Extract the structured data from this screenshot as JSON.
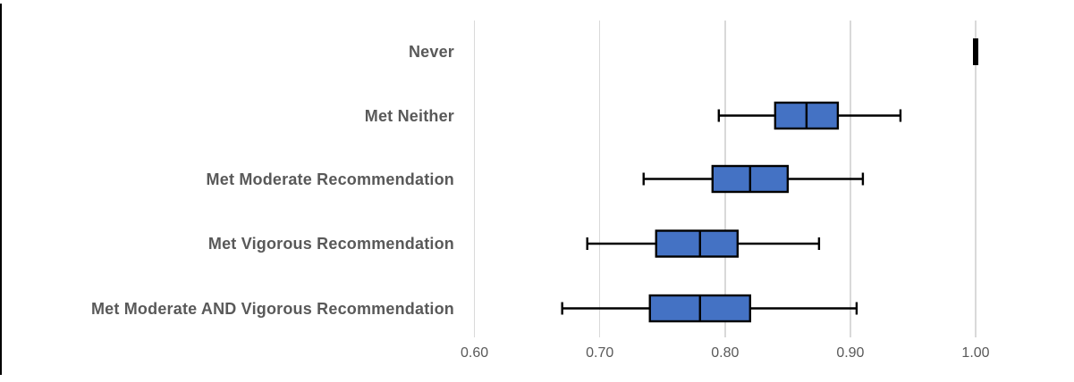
{
  "chart_data": {
    "type": "box",
    "orientation": "horizontal",
    "title": "",
    "xlabel": "",
    "ylabel": "",
    "categories": [
      "Never",
      "Met Neither",
      "Met Moderate Recommendation",
      "Met Vigorous Recommendation",
      "Met Moderate AND Vigorous Recommendation"
    ],
    "series": [
      {
        "name": "Never",
        "min": 1.0,
        "q1": 1.0,
        "median": 1.0,
        "q3": 1.0,
        "max": 1.0
      },
      {
        "name": "Met Neither",
        "min": 0.795,
        "q1": 0.84,
        "median": 0.865,
        "q3": 0.89,
        "max": 0.94
      },
      {
        "name": "Met Moderate Recommendation",
        "min": 0.735,
        "q1": 0.79,
        "median": 0.82,
        "q3": 0.85,
        "max": 0.91
      },
      {
        "name": "Met Vigorous Recommendation",
        "min": 0.69,
        "q1": 0.745,
        "median": 0.78,
        "q3": 0.81,
        "max": 0.875
      },
      {
        "name": "Met Moderate AND Vigorous Recommendation",
        "min": 0.67,
        "q1": 0.74,
        "median": 0.78,
        "q3": 0.82,
        "max": 0.905
      }
    ],
    "x_axis": {
      "min": 0.6,
      "max": 1.0,
      "tick_values": [
        0.6,
        0.7,
        0.8,
        0.9,
        1.0
      ],
      "tick_labels": [
        "0.60",
        "0.70",
        "0.80",
        "0.90",
        "1.00"
      ],
      "grid": true
    },
    "legend": "none",
    "colors": {
      "box_fill": "#4472C4",
      "box_border": "#000000",
      "gridline": "#D9D9D9",
      "text": "#595959",
      "frame_line": "#000000"
    }
  }
}
